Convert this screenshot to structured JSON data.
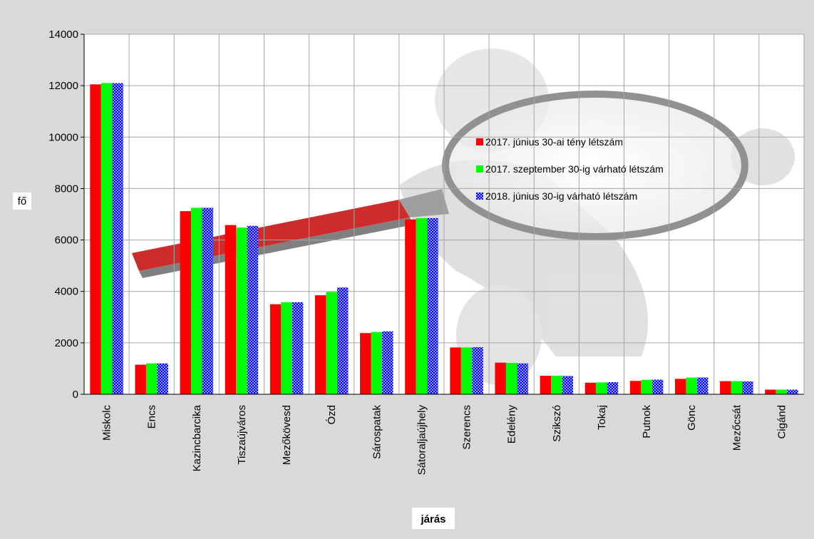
{
  "colors": {
    "outer_bg": "#d9d9d9",
    "plot_bg": "#ffffff",
    "grid": "#a6a6a6",
    "series_red": "#ff0000",
    "series_green": "#00ff00",
    "series_blue": "#0000ff",
    "pattern_dots": "#ffffff",
    "axis_label_box": "#ffffff"
  },
  "chart_data": {
    "type": "bar",
    "title": "",
    "xlabel": "járás",
    "ylabel": "fő",
    "ylim": [
      0,
      14000
    ],
    "yticks": [
      0,
      2000,
      4000,
      6000,
      8000,
      10000,
      12000,
      14000
    ],
    "grid": true,
    "legend_position": "top-right",
    "categories": [
      "Miskolc",
      "Encs",
      "Kazincbarcika",
      "Tiszaújváros",
      "Mezőkövesd",
      "Ózd",
      "Sárospatak",
      "Sátoraljaújhely",
      "Szerencs",
      "Edelény",
      "Szikszó",
      "Tokaj",
      "Putnok",
      "Gönc",
      "Mezőcsát",
      "Cigánd"
    ],
    "series": [
      {
        "name": "2017. június 30-ai tény létszám",
        "color": "#ff0000",
        "pattern": "solid",
        "values": [
          12050,
          1150,
          7120,
          6580,
          3500,
          3850,
          2380,
          6800,
          1820,
          1230,
          720,
          450,
          520,
          600,
          510,
          180
        ]
      },
      {
        "name": "2017. szeptember 30-ig várható létszám",
        "color": "#00ff00",
        "pattern": "solid",
        "values": [
          12100,
          1200,
          7250,
          6480,
          3580,
          3980,
          2420,
          6850,
          1820,
          1220,
          720,
          460,
          560,
          650,
          510,
          180
        ]
      },
      {
        "name": "2018. június 30-ig várható létszám",
        "color": "#0000ff",
        "pattern": "dotted",
        "values": [
          12100,
          1200,
          7250,
          6550,
          3580,
          4150,
          2450,
          6850,
          1830,
          1200,
          710,
          470,
          570,
          650,
          500,
          180
        ]
      }
    ]
  }
}
